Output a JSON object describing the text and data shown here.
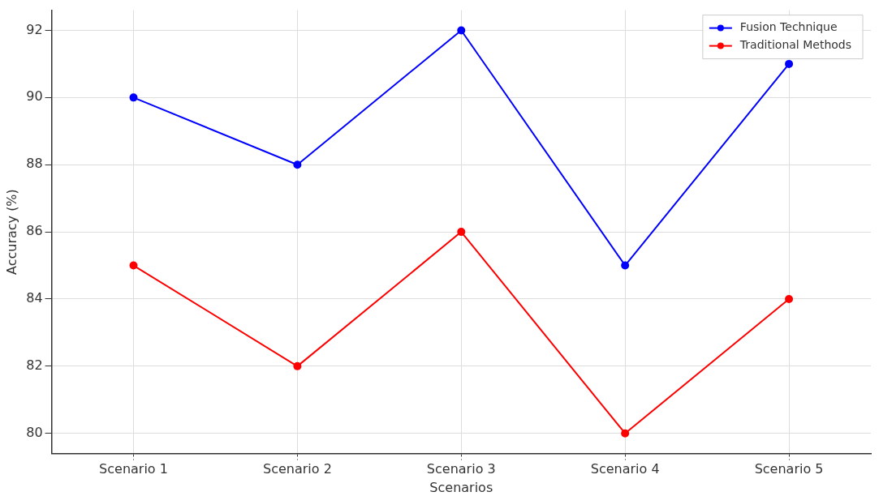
{
  "chart_data": {
    "type": "line",
    "xlabel": "Scenarios",
    "ylabel": "Accuracy (%)",
    "categories": [
      "Scenario 1",
      "Scenario 2",
      "Scenario 3",
      "Scenario 4",
      "Scenario 5"
    ],
    "series": [
      {
        "name": "Fusion Technique",
        "color": "#0000ff",
        "values": [
          90,
          88,
          92,
          85,
          91
        ]
      },
      {
        "name": "Traditional Methods",
        "color": "#ff0000",
        "values": [
          85,
          82,
          86,
          80,
          84
        ]
      }
    ],
    "ylim": [
      79.4,
      92.6
    ],
    "yticks": [
      80,
      82,
      84,
      86,
      88,
      90,
      92
    ],
    "grid": true,
    "legend": "top right",
    "marker": "circle",
    "line_style": "solid"
  }
}
